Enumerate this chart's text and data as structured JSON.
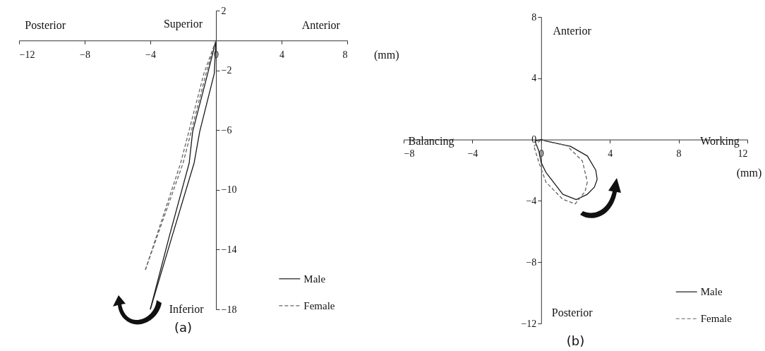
{
  "chart_data": [
    {
      "type": "line",
      "title": "(a)",
      "annotations": [
        "Posterior",
        "Superior",
        "Anterior",
        "Inferior",
        "(mm)"
      ],
      "xlim": [
        -12,
        8
      ],
      "xticks": [
        -12,
        -8,
        -4,
        0,
        4,
        8
      ],
      "ylim": [
        -18,
        2
      ],
      "yticks": [
        2,
        -2,
        -6,
        -10,
        -14,
        -18
      ],
      "legend": "bottom right",
      "series": [
        {
          "name": "Male",
          "color": "#1a1a1a",
          "line_style": "solid",
          "x": [
            0,
            -0.5,
            -1.42,
            -1.63,
            -2.84,
            -4.0
          ],
          "values": [
            0,
            -2.2,
            -6.1,
            -8.2,
            -13.1,
            -18.0
          ]
        },
        {
          "color": "#1a1a1a",
          "line_style": "solid",
          "x": [
            -4.0,
            -2.67,
            -1.33,
            -0.99,
            -0.1,
            0
          ],
          "values": [
            -18.0,
            -13.1,
            -8.2,
            -6.1,
            -2.2,
            0
          ]
        },
        {
          "name": "Female",
          "color": "#666666",
          "line_style": "dashed",
          "x": [
            0,
            -0.73,
            -2.15,
            -4.3
          ],
          "values": [
            0,
            -2.2,
            -8.2,
            -15.35
          ]
        },
        {
          "color": "#666666",
          "line_style": "dashed",
          "x": [
            -4.3,
            -2.0,
            -0.6,
            0
          ],
          "values": [
            -15.35,
            -8.2,
            -2.2,
            0
          ]
        }
      ]
    },
    {
      "type": "line",
      "title": "(b)",
      "annotations": [
        "Anterior",
        "Balancing",
        "Working",
        "Posterior",
        "(mm)"
      ],
      "xlim": [
        -8,
        12
      ],
      "xticks": [
        -8,
        -4,
        0,
        4,
        8,
        12
      ],
      "ylim": [
        -12,
        8
      ],
      "yticks": [
        8,
        4,
        0,
        -4,
        -8,
        -12
      ],
      "legend": "bottom right",
      "series": [
        {
          "name": "Male",
          "color": "#1a1a1a",
          "line_style": "solid",
          "x": [
            -0.36,
            0,
            0.3,
            1.7,
            2.69,
            3.18,
            3.26
          ],
          "values": [
            -0.1,
            0,
            -0.1,
            -0.44,
            -1.07,
            -2.0,
            -2.6
          ]
        },
        {
          "color": "#1a1a1a",
          "line_style": "solid",
          "x": [
            3.26,
            3.1,
            2.69,
            2.04,
            1.26,
            0.28,
            0,
            -0.13,
            -0.36
          ],
          "values": [
            -2.6,
            -3.1,
            -3.57,
            -3.92,
            -3.57,
            -2.14,
            -1.5,
            -0.76,
            -0.1
          ]
        },
        {
          "name": "Female",
          "color": "#666666",
          "line_style": "dashed",
          "x": [
            -0.42,
            0,
            1.5,
            2.4,
            2.69
          ],
          "values": [
            -0.44,
            0,
            -0.4,
            -1.4,
            -2.77
          ]
        },
        {
          "color": "#666666",
          "line_style": "dashed",
          "x": [
            2.69,
            2.55,
            1.98,
            1.26,
            0.28,
            -0.13,
            -0.42
          ],
          "values": [
            -2.77,
            -3.4,
            -4.2,
            -3.9,
            -2.78,
            -1.5,
            -0.44
          ]
        }
      ]
    }
  ]
}
